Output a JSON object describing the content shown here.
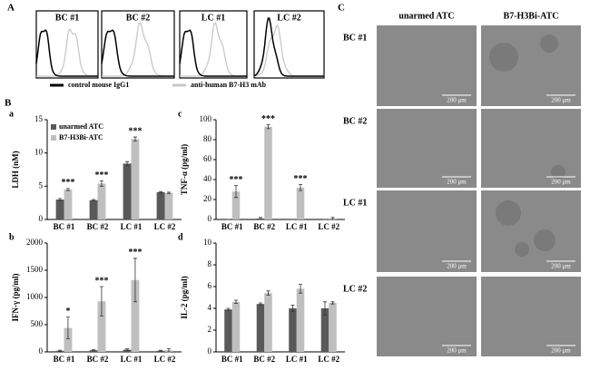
{
  "panel_labels": [
    "A",
    "B",
    "C"
  ],
  "panel_a": {
    "titles": [
      "BC  #1",
      "BC  #2",
      "LC  #1",
      "LC  #2"
    ],
    "legend": [
      "control mouse IgG1",
      "anti-human B7-H3 mAb"
    ]
  },
  "chart_data": [
    {
      "type": "bar",
      "panel": "a",
      "y_label": "LDH (nM)",
      "categories": [
        "BC #1",
        "BC #2",
        "LC #1",
        "LC #2"
      ],
      "series": [
        {
          "name": "unarmed ATC",
          "color": "#595959",
          "values": [
            3,
            2.9,
            8.4,
            4.1
          ],
          "errors": [
            0.15,
            0.1,
            0.3,
            0.1
          ]
        },
        {
          "name": "B7-H3Bi-ATC",
          "color": "#bfbfbf",
          "values": [
            4.5,
            5.4,
            12.1,
            4.0
          ],
          "errors": [
            0.15,
            0.4,
            0.3,
            0.1
          ]
        }
      ],
      "annotations": [
        "***",
        "***",
        "***",
        null
      ],
      "ylim": [
        0,
        15
      ],
      "yticks": [
        0,
        5,
        10,
        15
      ],
      "legend": "upper left"
    },
    {
      "type": "bar",
      "panel": "b",
      "y_label": "IFN-γ (pg/ml)",
      "categories": [
        "BC #1",
        "BC #2",
        "LC #1",
        "LC #2"
      ],
      "series": [
        {
          "color": "#595959",
          "values": [
            20,
            30,
            40,
            20
          ],
          "errors": [
            10,
            10,
            15,
            10
          ]
        },
        {
          "color": "#bfbfbf",
          "values": [
            440,
            930,
            1320,
            30
          ],
          "errors": [
            200,
            270,
            400,
            30
          ]
        }
      ],
      "annotations": [
        "*",
        "***",
        "***",
        null
      ],
      "ylim": [
        0,
        2000
      ],
      "yticks": [
        0,
        500,
        1000,
        1500,
        2000
      ]
    },
    {
      "type": "bar",
      "panel": "c",
      "y_label": "TNF-α (pg/ml)",
      "categories": [
        "BC #1",
        "BC #2",
        "LC #1",
        "LC #2"
      ],
      "series": [
        {
          "color": "#595959",
          "values": [
            0,
            1,
            0,
            0
          ],
          "errors": [
            0,
            1,
            0,
            0
          ]
        },
        {
          "color": "#bfbfbf",
          "values": [
            28,
            93,
            32,
            1
          ],
          "errors": [
            6,
            2,
            3,
            1
          ]
        }
      ],
      "annotations": [
        "***",
        "***",
        "***",
        null
      ],
      "ylim": [
        0,
        100
      ],
      "yticks": [
        0,
        20,
        40,
        60,
        80,
        100
      ]
    },
    {
      "type": "bar",
      "panel": "d",
      "y_label": "IL-2 (pg/ml)",
      "categories": [
        "BC #1",
        "BC #2",
        "LC #1",
        "LC #2"
      ],
      "series": [
        {
          "color": "#595959",
          "values": [
            3.9,
            4.4,
            4.0,
            4.0
          ],
          "errors": [
            0.1,
            0.1,
            0.3,
            0.6
          ]
        },
        {
          "color": "#bfbfbf",
          "values": [
            4.6,
            5.4,
            5.8,
            4.5
          ],
          "errors": [
            0.15,
            0.2,
            0.4,
            0.1
          ]
        }
      ],
      "annotations": [
        null,
        null,
        null,
        null
      ],
      "ylim": [
        0,
        10
      ],
      "yticks": [
        0,
        2,
        4,
        6,
        8,
        10
      ]
    }
  ],
  "panel_c": {
    "columns": [
      "unarmed ATC",
      "B7-H3Bi-ATC"
    ],
    "rows": [
      "BC  #1",
      "BC  #2",
      "LC  #1",
      "LC  #2"
    ],
    "scale_bar": "200  μm"
  }
}
